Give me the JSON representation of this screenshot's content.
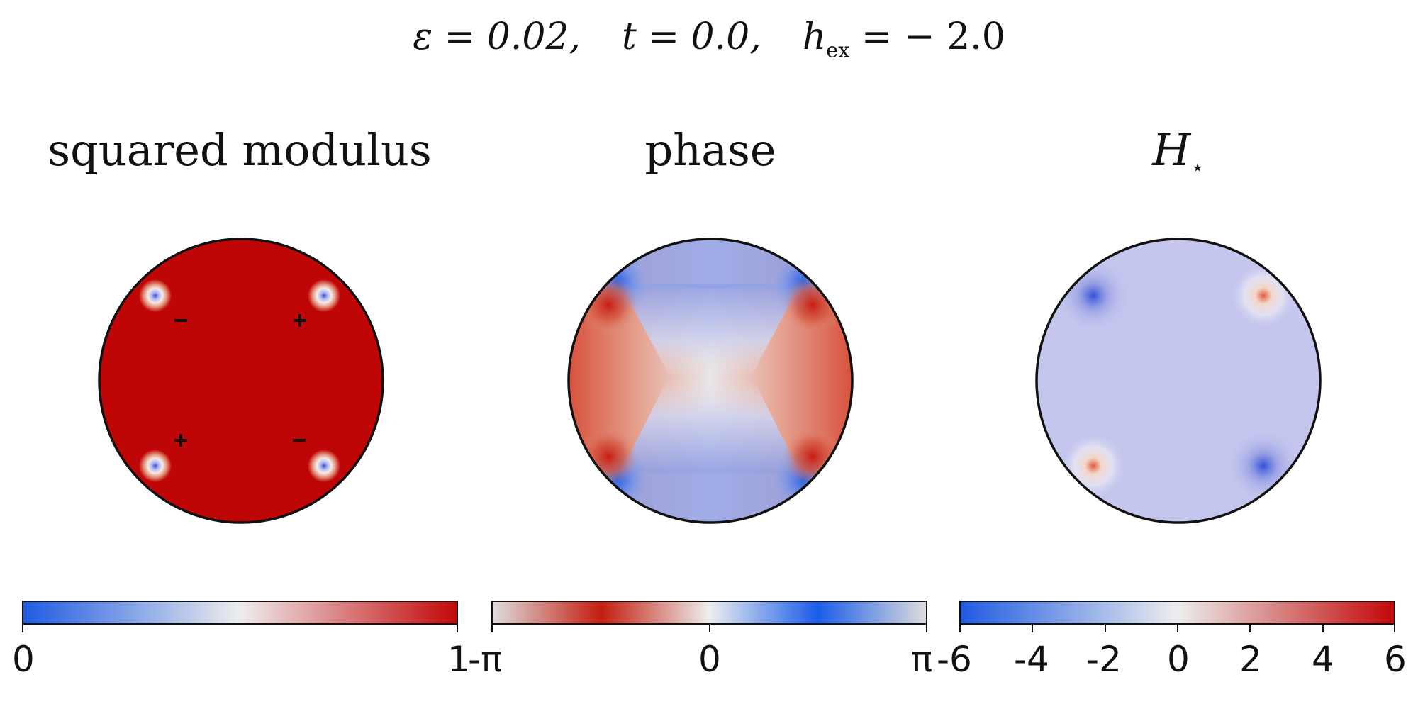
{
  "header": {
    "eps_label": "ε = 0.02,",
    "t_label": "t = 0.0,",
    "h_label": "h",
    "h_sub": "ex",
    "h_value": "= − 2.0"
  },
  "panels": [
    {
      "title": "squared modulus",
      "colorbar": {
        "colors": [
          "#1f5be0",
          "#eeeeee",
          "#c00808"
        ],
        "ticks": [
          "0",
          "1"
        ]
      },
      "markers": [
        {
          "sign": "−",
          "quadrant": "upper-left"
        },
        {
          "sign": "+",
          "quadrant": "upper-right"
        },
        {
          "sign": "+",
          "quadrant": "lower-left"
        },
        {
          "sign": "−",
          "quadrant": "lower-right"
        }
      ]
    },
    {
      "title": "phase",
      "colorbar": {
        "colors": [
          "#dddddd",
          "#c21d0f",
          "#eeeeee",
          "#1a5ce8",
          "#dddddd"
        ],
        "ticks": [
          "-π",
          "0",
          "π"
        ]
      }
    },
    {
      "title": "H",
      "title_sub": "⋆",
      "colorbar": {
        "colors": [
          "#1f5be0",
          "#eeeeee",
          "#c00808"
        ],
        "ticks": [
          "-6",
          "-4",
          "-2",
          "0",
          "2",
          "4",
          "6"
        ]
      }
    }
  ]
}
